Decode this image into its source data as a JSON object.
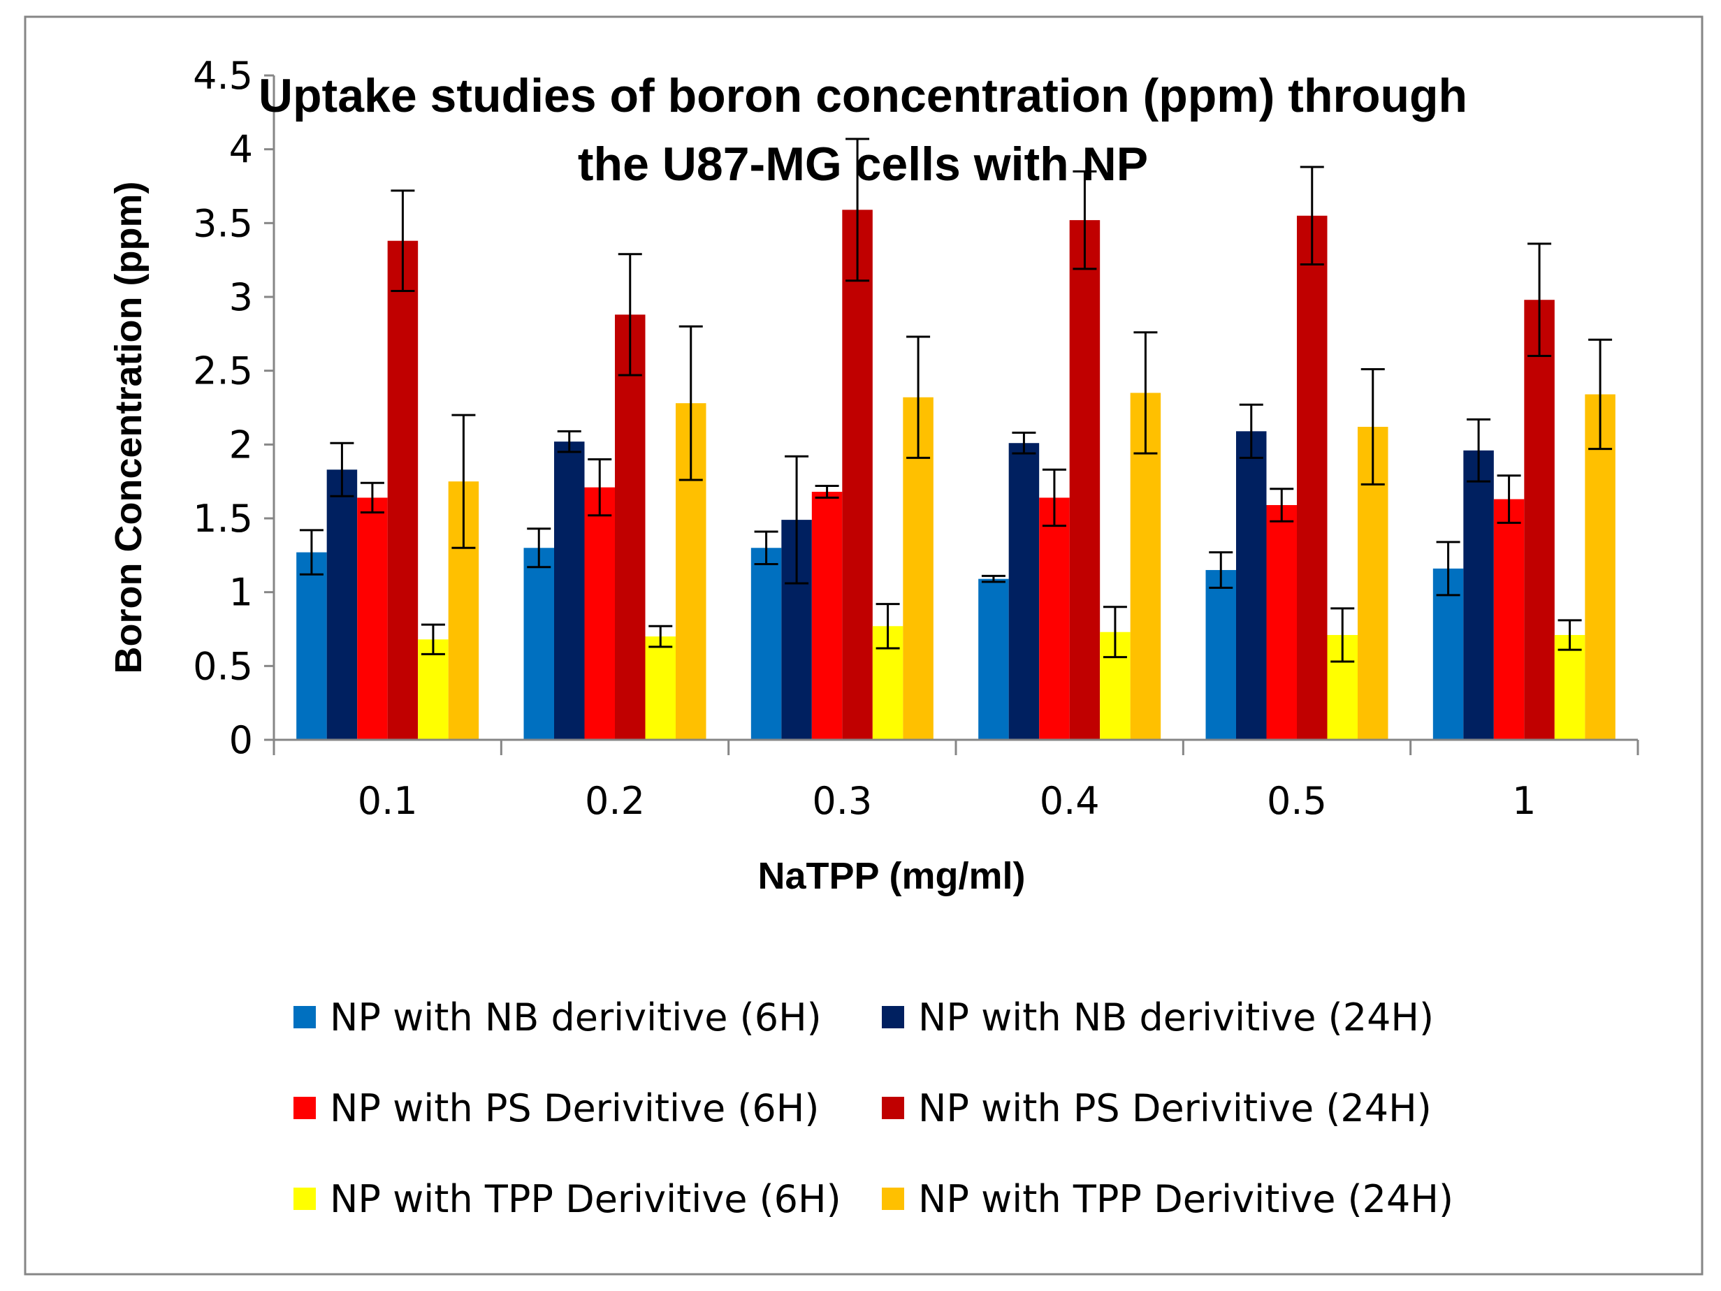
{
  "chart_data": {
    "type": "bar",
    "title_lines": [
      "Uptake studies of boron concentration (ppm) through",
      "the U87-MG cells with NP"
    ],
    "xlabel": "NaTPP (mg/ml)",
    "ylabel": "Boron Concentration (ppm)",
    "categories": [
      "0.1",
      "0.2",
      "0.3",
      "0.4",
      "0.5",
      "1"
    ],
    "ylim": [
      0,
      4.5
    ],
    "yticks": [
      "0",
      "0.5",
      "1",
      "1.5",
      "2",
      "2.5",
      "3",
      "3.5",
      "4",
      "4.5"
    ],
    "ytick_values": [
      0,
      0.5,
      1,
      1.5,
      2,
      2.5,
      3,
      3.5,
      4,
      4.5
    ],
    "legend_position": "bottom",
    "series": [
      {
        "name": "NP with NB derivitive (6H)",
        "color": "#0070C0",
        "values": [
          1.27,
          1.3,
          1.3,
          1.09,
          1.15,
          1.16
        ],
        "errors": [
          0.15,
          0.13,
          0.11,
          0.02,
          0.12,
          0.18
        ]
      },
      {
        "name": "NP with NB derivitive (24H)",
        "color": "#002060",
        "values": [
          1.83,
          2.02,
          1.49,
          2.01,
          2.09,
          1.96
        ],
        "errors": [
          0.18,
          0.07,
          0.43,
          0.07,
          0.18,
          0.21
        ]
      },
      {
        "name": "NP with PS Derivitive (6H)",
        "color": "#FF0000",
        "values": [
          1.64,
          1.71,
          1.68,
          1.64,
          1.59,
          1.63
        ],
        "errors": [
          0.1,
          0.19,
          0.04,
          0.19,
          0.11,
          0.16
        ]
      },
      {
        "name": "NP with PS Derivitive (24H)",
        "color": "#C00000",
        "values": [
          3.38,
          2.88,
          3.59,
          3.52,
          3.55,
          2.98
        ],
        "errors": [
          0.34,
          0.41,
          0.48,
          0.33,
          0.33,
          0.38
        ]
      },
      {
        "name": "NP with TPP Derivitive (6H)",
        "color": "#FFFF00",
        "values": [
          0.68,
          0.7,
          0.77,
          0.73,
          0.71,
          0.71
        ],
        "errors": [
          0.1,
          0.07,
          0.15,
          0.17,
          0.18,
          0.1
        ]
      },
      {
        "name": "NP with TPP Derivitive (24H)",
        "color": "#FFC000",
        "values": [
          1.75,
          2.28,
          2.32,
          2.35,
          2.12,
          2.34
        ],
        "errors": [
          0.45,
          0.52,
          0.41,
          0.41,
          0.39,
          0.37
        ]
      }
    ]
  }
}
